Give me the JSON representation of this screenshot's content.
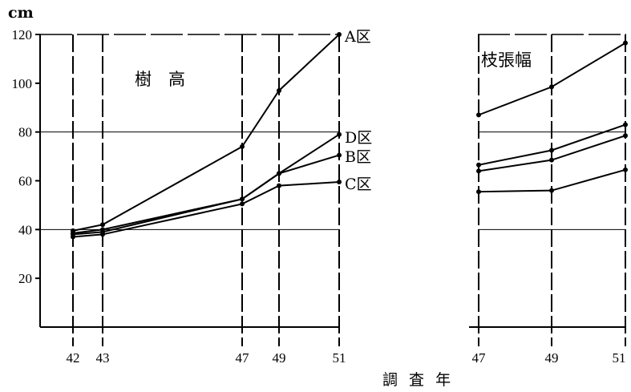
{
  "chart_data": [
    {
      "type": "line",
      "panel": "left",
      "title": "樹　高",
      "ylabel": "cm",
      "xlabel": "調 査 年",
      "ylim": [
        0,
        120
      ],
      "yticks": [
        20,
        40,
        60,
        80,
        100,
        120
      ],
      "x": [
        42,
        43,
        47,
        49,
        51
      ],
      "series": [
        {
          "name": "A区",
          "values": [
            39.5,
            42,
            74,
            97,
            120
          ]
        },
        {
          "name": "D区",
          "values": [
            38.5,
            40,
            52.5,
            63,
            79
          ]
        },
        {
          "name": "B区",
          "values": [
            38,
            39,
            52.5,
            63,
            70.5
          ]
        },
        {
          "name": "C区",
          "values": [
            37,
            38,
            50.5,
            58,
            59.5
          ]
        }
      ],
      "grid": true
    },
    {
      "type": "line",
      "panel": "right",
      "title": "枝張幅",
      "ylim": [
        0,
        120
      ],
      "x": [
        47,
        49,
        51
      ],
      "series": [
        {
          "values": [
            87,
            98.5,
            116.5
          ]
        },
        {
          "values": [
            66.5,
            72.5,
            83
          ]
        },
        {
          "values": [
            64,
            68.5,
            78.5
          ]
        },
        {
          "values": [
            55.5,
            56,
            64.5
          ]
        }
      ],
      "grid": true
    }
  ]
}
